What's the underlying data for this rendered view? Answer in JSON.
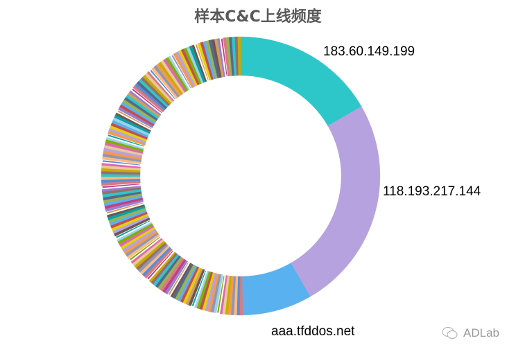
{
  "chart_data": {
    "type": "pie",
    "donut": true,
    "title": "样本C&C上线频度",
    "start_angle": "top, clockwise",
    "labeled_slices": [
      {
        "label": "183.60.149.199",
        "percent": 16.7,
        "color": "#2ec7c9"
      },
      {
        "label": "118.193.217.144",
        "percent": 25.0,
        "color": "#b6a2de"
      },
      {
        "label": "aaa.tfddos.net",
        "percent": 8.1,
        "color": "#5ab1ef"
      }
    ],
    "unlabeled_small_slices": {
      "count": 150,
      "percent_each": 0.335
    },
    "palette": [
      "#d87a80",
      "#8d98b3",
      "#e5cf0d",
      "#97b552",
      "#95706d",
      "#dc69aa",
      "#07a2a4",
      "#9a7fd1",
      "#588dd5",
      "#f5994e",
      "#c05050",
      "#59678c",
      "#c9ab00",
      "#7eb00a",
      "#6f5553",
      "#c14089",
      "#ffb980",
      "#b6a2de",
      "#5ab1ef",
      "#2ec7c9",
      "#e8c8a0",
      "#a0d0e8",
      "#d0a060"
    ],
    "legend": "none"
  },
  "watermark": {
    "text": "ADLab",
    "icon": "wechat-icon"
  }
}
